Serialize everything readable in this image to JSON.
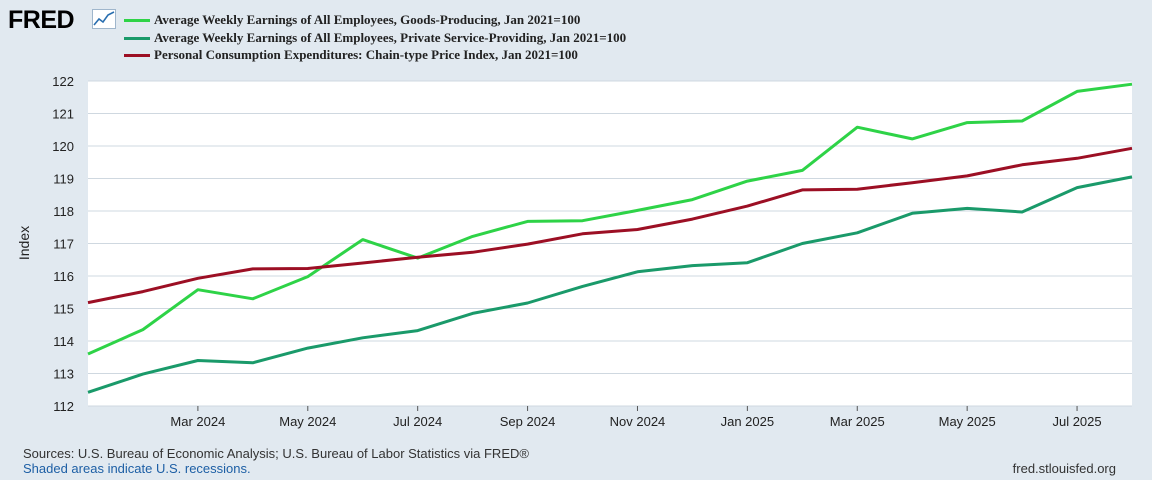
{
  "header": {
    "logo_text": "FRED"
  },
  "legend": [
    {
      "label": "Average Weekly Earnings of All Employees, Goods-Producing, Jan 2021=100",
      "color": "#2ed347"
    },
    {
      "label": "Average Weekly Earnings of All Employees, Private Service-Providing, Jan 2021=100",
      "color": "#1a9a6a"
    },
    {
      "label": "Personal Consumption Expenditures: Chain-type Price Index, Jan 2021=100",
      "color": "#9c0f24"
    }
  ],
  "chart_data": {
    "type": "line",
    "ylabel": "Index",
    "ylim": [
      112,
      122
    ],
    "yticks": [
      112,
      113,
      114,
      115,
      116,
      117,
      118,
      119,
      120,
      121,
      122
    ],
    "x": [
      "Jan 2024",
      "Feb 2024",
      "Mar 2024",
      "Apr 2024",
      "May 2024",
      "Jun 2024",
      "Jul 2024",
      "Aug 2024",
      "Sep 2024",
      "Oct 2024",
      "Nov 2024",
      "Dec 2024",
      "Jan 2025",
      "Feb 2025",
      "Mar 2025",
      "Apr 2025",
      "May 2025",
      "Jun 2025",
      "Jul 2025",
      "Aug 2025"
    ],
    "xtick_labels": [
      "Mar 2024",
      "May 2024",
      "Jul 2024",
      "Sep 2024",
      "Nov 2024",
      "Jan 2025",
      "Mar 2025",
      "May 2025",
      "Jul 2025"
    ],
    "series": [
      {
        "name": "Average Weekly Earnings of All Employees, Goods-Producing, Jan 2021=100",
        "color": "#2ed347",
        "values": [
          113.6,
          114.35,
          115.58,
          115.3,
          115.98,
          117.12,
          116.55,
          117.22,
          117.68,
          117.7,
          118.02,
          118.35,
          118.92,
          119.25,
          120.58,
          120.22,
          120.72,
          120.77,
          121.68,
          121.9
        ]
      },
      {
        "name": "Average Weekly Earnings of All Employees, Private Service-Providing, Jan 2021=100",
        "color": "#1a9a6a",
        "values": [
          112.42,
          112.98,
          113.4,
          113.33,
          113.78,
          114.1,
          114.32,
          114.85,
          115.17,
          115.68,
          116.13,
          116.32,
          116.41,
          117.0,
          117.33,
          117.93,
          118.08,
          117.97,
          118.72,
          119.05
        ]
      },
      {
        "name": "Personal Consumption Expenditures: Chain-type Price Index, Jan 2021=100",
        "color": "#9c0f24",
        "values": [
          115.18,
          115.52,
          115.93,
          116.22,
          116.23,
          116.4,
          116.58,
          116.73,
          116.98,
          117.3,
          117.43,
          117.75,
          118.15,
          118.65,
          118.67,
          118.87,
          119.08,
          119.42,
          119.62,
          119.93
        ]
      }
    ]
  },
  "footer": {
    "sources": "Sources: U.S. Bureau of Economic Analysis; U.S. Bureau of Labor Statistics via FRED®",
    "recession_note": "Shaded areas indicate U.S. recessions.",
    "url": "fred.stlouisfed.org"
  }
}
